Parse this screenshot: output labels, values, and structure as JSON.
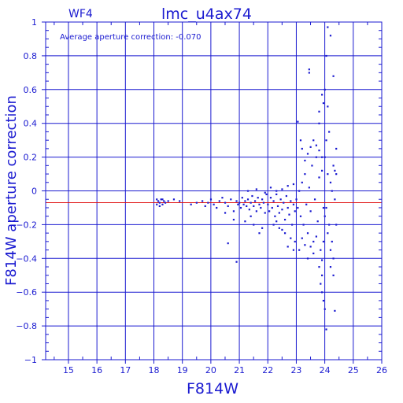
{
  "chart_data": {
    "type": "scatter",
    "title": "lmc_u4ax74",
    "panel_label": "WF4",
    "annotation": "Average aperture correction: -0.070",
    "xlabel": "F814W",
    "ylabel": "F814W aperture correction",
    "xlim": [
      14.2,
      26
    ],
    "ylim": [
      -1,
      1
    ],
    "x_ticks": [
      15,
      16,
      17,
      18,
      19,
      20,
      21,
      22,
      23,
      24,
      25,
      26
    ],
    "x_tick_labels": [
      "15",
      "16",
      "17",
      "18",
      "19",
      "20",
      "21",
      "22",
      "23",
      "24",
      "25",
      "26"
    ],
    "y_ticks": [
      -1,
      -0.8,
      -0.6,
      -0.4,
      -0.2,
      0,
      0.2,
      0.4,
      0.6,
      0.8,
      1
    ],
    "y_tick_labels": [
      "−1",
      "−0.8",
      "−0.6",
      "−0.4",
      "−0.2",
      "0",
      "0.2",
      "0.4",
      "0.6",
      "0.8",
      "1"
    ],
    "grid": true,
    "reference_line": {
      "y": -0.07,
      "color": "#e01010"
    },
    "colors": {
      "axes": "#1a1ad0",
      "points": "#1a1ad0",
      "background": "#ffffff"
    },
    "series": [
      {
        "points": [
          [
            18.1,
            -0.05
          ],
          [
            18.15,
            -0.06
          ],
          [
            18.2,
            -0.07
          ],
          [
            18.25,
            -0.05
          ],
          [
            18.3,
            -0.08
          ],
          [
            18.35,
            -0.06
          ],
          [
            18.2,
            -0.09
          ],
          [
            18.4,
            -0.07
          ],
          [
            18.1,
            -0.08
          ],
          [
            18.3,
            -0.05
          ],
          [
            18.5,
            -0.06
          ],
          [
            18.7,
            -0.05
          ],
          [
            18.9,
            -0.06
          ],
          [
            19.3,
            -0.08
          ],
          [
            19.5,
            -0.07
          ],
          [
            19.7,
            -0.06
          ],
          [
            19.8,
            -0.09
          ],
          [
            19.9,
            -0.07
          ],
          [
            20.0,
            -0.05
          ],
          [
            20.1,
            -0.08
          ],
          [
            20.2,
            -0.1
          ],
          [
            20.3,
            -0.06
          ],
          [
            20.4,
            -0.04
          ],
          [
            20.5,
            -0.07
          ],
          [
            20.6,
            -0.09
          ],
          [
            20.7,
            -0.05
          ],
          [
            20.8,
            -0.12
          ],
          [
            20.9,
            -0.06
          ],
          [
            20.95,
            -0.08
          ],
          [
            20.6,
            -0.31
          ],
          [
            20.9,
            -0.42
          ],
          [
            20.8,
            -0.17
          ],
          [
            20.5,
            -0.13
          ],
          [
            21.0,
            -0.07
          ],
          [
            21.05,
            -0.1
          ],
          [
            21.1,
            -0.04
          ],
          [
            21.15,
            -0.08
          ],
          [
            21.2,
            -0.06
          ],
          [
            21.25,
            -0.09
          ],
          [
            21.3,
            -0.05
          ],
          [
            21.35,
            -0.11
          ],
          [
            21.4,
            -0.07
          ],
          [
            21.45,
            -0.03
          ],
          [
            21.5,
            -0.09
          ],
          [
            21.55,
            -0.06
          ],
          [
            21.6,
            -0.12
          ],
          [
            21.65,
            -0.04
          ],
          [
            21.7,
            -0.08
          ],
          [
            21.75,
            -0.1
          ],
          [
            21.8,
            -0.05
          ],
          [
            21.85,
            -0.07
          ],
          [
            21.9,
            -0.13
          ],
          [
            21.95,
            -0.02
          ],
          [
            21.2,
            -0.18
          ],
          [
            21.5,
            -0.2
          ],
          [
            21.7,
            -0.25
          ],
          [
            21.4,
            -0.15
          ],
          [
            21.8,
            -0.22
          ],
          [
            21.3,
            0.0
          ],
          [
            21.6,
            0.01
          ],
          [
            21.9,
            -0.01
          ],
          [
            22.0,
            -0.08
          ],
          [
            22.05,
            -0.12
          ],
          [
            22.1,
            -0.04
          ],
          [
            22.15,
            -0.1
          ],
          [
            22.2,
            -0.06
          ],
          [
            22.25,
            -0.15
          ],
          [
            22.3,
            -0.02
          ],
          [
            22.35,
            -0.09
          ],
          [
            22.4,
            -0.13
          ],
          [
            22.45,
            -0.05
          ],
          [
            22.5,
            -0.11
          ],
          [
            22.55,
            -0.07
          ],
          [
            22.6,
            -0.17
          ],
          [
            22.65,
            -0.03
          ],
          [
            22.7,
            -0.1
          ],
          [
            22.75,
            -0.14
          ],
          [
            22.8,
            -0.06
          ],
          [
            22.85,
            -0.2
          ],
          [
            22.9,
            -0.08
          ],
          [
            22.95,
            -0.12
          ],
          [
            22.1,
            0.02
          ],
          [
            22.3,
            0.0
          ],
          [
            22.5,
            0.01
          ],
          [
            22.7,
            0.03
          ],
          [
            22.9,
            0.04
          ],
          [
            22.2,
            -0.2
          ],
          [
            22.4,
            -0.22
          ],
          [
            22.6,
            -0.25
          ],
          [
            22.8,
            -0.28
          ],
          [
            22.95,
            -0.3
          ],
          [
            22.3,
            -0.18
          ],
          [
            22.5,
            -0.23
          ],
          [
            22.7,
            -0.33
          ],
          [
            22.9,
            -0.35
          ],
          [
            23.0,
            -0.05
          ],
          [
            23.05,
            -0.1
          ],
          [
            23.1,
            0.0
          ],
          [
            23.15,
            -0.15
          ],
          [
            23.2,
            0.05
          ],
          [
            23.25,
            -0.2
          ],
          [
            23.3,
            0.1
          ],
          [
            23.35,
            -0.08
          ],
          [
            23.4,
            -0.25
          ],
          [
            23.45,
            0.02
          ],
          [
            23.5,
            -0.12
          ],
          [
            23.55,
            0.15
          ],
          [
            23.6,
            -0.3
          ],
          [
            23.65,
            -0.05
          ],
          [
            23.7,
            0.2
          ],
          [
            23.75,
            -0.18
          ],
          [
            23.8,
            0.08
          ],
          [
            23.85,
            -0.35
          ],
          [
            23.9,
            0.12
          ],
          [
            23.95,
            -0.1
          ],
          [
            23.05,
            0.41
          ],
          [
            23.15,
            0.3
          ],
          [
            23.2,
            0.25
          ],
          [
            23.3,
            0.18
          ],
          [
            23.4,
            0.22
          ],
          [
            23.5,
            0.26
          ],
          [
            23.6,
            0.3
          ],
          [
            23.7,
            0.27
          ],
          [
            23.8,
            0.24
          ],
          [
            23.9,
            0.2
          ],
          [
            23.1,
            -0.35
          ],
          [
            23.2,
            -0.28
          ],
          [
            23.3,
            -0.32
          ],
          [
            23.4,
            -0.4
          ],
          [
            23.5,
            -0.33
          ],
          [
            23.6,
            -0.37
          ],
          [
            23.7,
            -0.27
          ],
          [
            23.8,
            -0.45
          ],
          [
            23.9,
            -0.41
          ],
          [
            23.95,
            -0.3
          ],
          [
            23.45,
            0.72
          ],
          [
            23.45,
            0.7
          ],
          [
            23.9,
            0.57
          ],
          [
            23.95,
            0.52
          ],
          [
            23.8,
            0.47
          ],
          [
            23.8,
            0.4
          ],
          [
            23.9,
            -0.5
          ],
          [
            23.85,
            -0.55
          ],
          [
            23.9,
            -0.6
          ],
          [
            23.95,
            -0.65
          ],
          [
            24.0,
            0.2
          ],
          [
            24.05,
            -0.1
          ],
          [
            24.1,
            0.1
          ],
          [
            24.15,
            -0.2
          ],
          [
            24.2,
            0.05
          ],
          [
            24.25,
            -0.3
          ],
          [
            24.3,
            0.15
          ],
          [
            24.35,
            -0.05
          ],
          [
            24.4,
            0.25
          ],
          [
            24.0,
            -0.15
          ],
          [
            24.05,
            0.3
          ],
          [
            24.1,
            -0.25
          ],
          [
            24.15,
            0.35
          ],
          [
            24.2,
            -0.35
          ],
          [
            24.25,
            0.0
          ],
          [
            24.3,
            -0.4
          ],
          [
            24.1,
            0.97
          ],
          [
            24.2,
            0.92
          ],
          [
            24.05,
            0.8
          ],
          [
            24.3,
            0.68
          ],
          [
            24.0,
            0.6
          ],
          [
            24.1,
            0.5
          ],
          [
            24.0,
            -0.7
          ],
          [
            24.05,
            -0.82
          ],
          [
            24.35,
            -0.71
          ],
          [
            24.3,
            -0.5
          ],
          [
            24.2,
            -0.45
          ],
          [
            24.4,
            0.1
          ],
          [
            24.4,
            -0.2
          ],
          [
            24.35,
            0.12
          ]
        ]
      }
    ]
  }
}
